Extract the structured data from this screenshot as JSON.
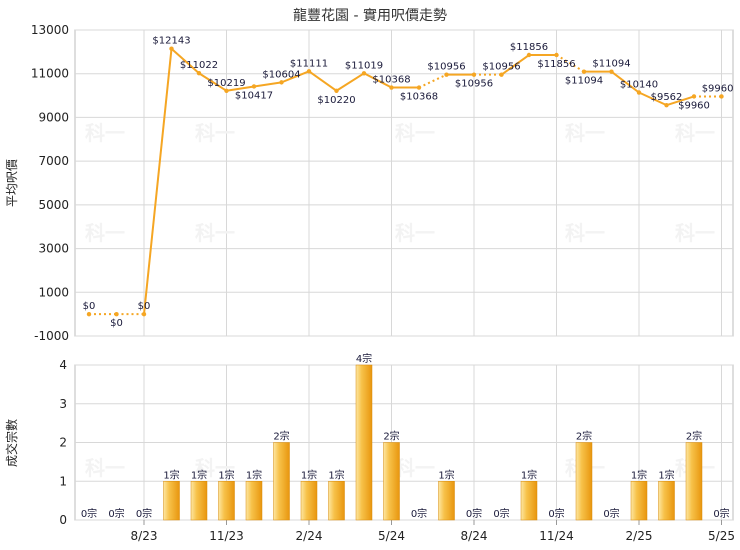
{
  "title": "龍豐花園 - 實用呎價走勢",
  "watermark": "科一",
  "colors": {
    "line": "#f5a623",
    "bar_light": "#fde7a3",
    "bar_dark": "#e8960e",
    "grid": "#d8d8d8"
  },
  "chart_data": [
    {
      "type": "line",
      "ylabel": "平均呎價",
      "ylim": [
        -1000,
        13000
      ],
      "yticks": [
        "13000",
        "11000",
        "9000",
        "7000",
        "5000",
        "3000",
        "1000",
        "-1000"
      ],
      "series": [
        {
          "values": [
            0,
            0,
            0,
            12143,
            11022,
            10219,
            10417,
            10604,
            11111,
            10220,
            11019,
            10368,
            10368,
            10956,
            10956,
            10956,
            11856,
            11856,
            11094,
            11094,
            10140,
            9562,
            9960,
            9960
          ],
          "labels": [
            "$0",
            "$0",
            "$0",
            "$12143",
            "$11022",
            "$10219",
            "$10417",
            "$10604",
            "$11111",
            "$10220",
            "$11019",
            "$10368",
            "$10368",
            "$10956",
            "$10956",
            "$10956",
            "$11856",
            "$11856",
            "$11094",
            "$11094",
            "$10140",
            "$9562",
            "$9960",
            "$9960"
          ],
          "dotted": [
            true,
            true,
            false,
            false,
            false,
            false,
            false,
            false,
            false,
            false,
            false,
            false,
            true,
            false,
            true,
            false,
            false,
            true,
            false,
            false,
            false,
            false,
            true
          ]
        }
      ]
    },
    {
      "type": "bar",
      "ylabel": "成交宗數",
      "ylim": [
        0,
        4
      ],
      "yticks": [
        "4",
        "3",
        "2",
        "1",
        "0"
      ],
      "values": [
        0,
        0,
        0,
        1,
        1,
        1,
        1,
        2,
        1,
        1,
        4,
        2,
        0,
        1,
        0,
        0,
        1,
        0,
        2,
        0,
        1,
        1,
        2,
        0
      ],
      "labels": [
        "0宗",
        "0宗",
        "0宗",
        "1宗",
        "1宗",
        "1宗",
        "1宗",
        "2宗",
        "1宗",
        "1宗",
        "4宗",
        "2宗",
        "0宗",
        "1宗",
        "0宗",
        "0宗",
        "1宗",
        "0宗",
        "2宗",
        "0宗",
        "1宗",
        "1宗",
        "2宗",
        "0宗"
      ],
      "xticks": [
        {
          "index": 2,
          "label": "8/23"
        },
        {
          "index": 5,
          "label": "11/23"
        },
        {
          "index": 8,
          "label": "2/24"
        },
        {
          "index": 11,
          "label": "5/24"
        },
        {
          "index": 14,
          "label": "8/24"
        },
        {
          "index": 17,
          "label": "11/24"
        },
        {
          "index": 20,
          "label": "2/25"
        },
        {
          "index": 23,
          "label": "5/25"
        }
      ]
    }
  ]
}
